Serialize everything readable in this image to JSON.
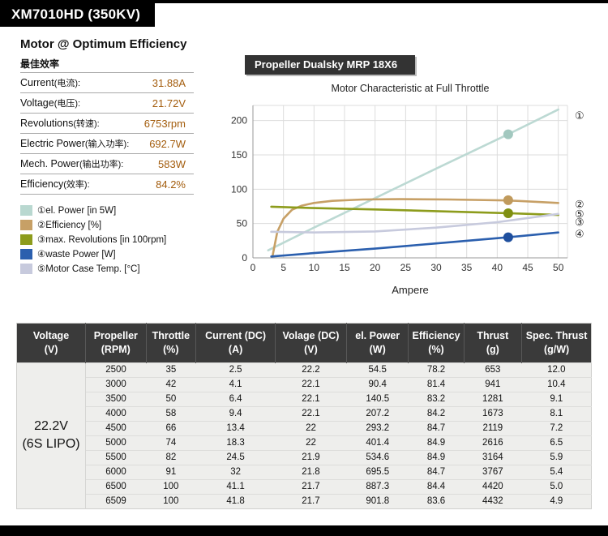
{
  "header": {
    "title": "XM7010HD (350KV)"
  },
  "optimum": {
    "title": "Motor @ Optimum Efficiency",
    "subtitle": "最佳效率",
    "rows": [
      {
        "label": "Current",
        "label_cn": "(电流):",
        "value": "31.88A"
      },
      {
        "label": "Voltage",
        "label_cn": "(电压):",
        "value": "21.72V"
      },
      {
        "label": "Revolutions",
        "label_cn": "(转速):",
        "value": "6753rpm"
      },
      {
        "label": "Electric Power",
        "label_cn": "(输入功率):",
        "value": "692.7W"
      },
      {
        "label": "Mech. Power",
        "label_cn": "(输出功率):",
        "value": "583W"
      },
      {
        "label": "Efficiency",
        "label_cn": "(效率):",
        "value": "84.2%"
      }
    ]
  },
  "legend": {
    "items": [
      {
        "num": "①",
        "label": "el. Power [in 5W]",
        "color": "#b9d8d0"
      },
      {
        "num": "②",
        "label": "Efficiency [%]",
        "color": "#c7a066"
      },
      {
        "num": "③",
        "label": "max. Revolutions [in 100rpm]",
        "color": "#8d9c1c"
      },
      {
        "num": "④",
        "label": "waste Power [W]",
        "color": "#2b5fae"
      },
      {
        "num": "⑤",
        "label": "Motor Case Temp. [°C]",
        "color": "#c7cadd"
      }
    ]
  },
  "propeller_label": "Propeller Dualsky MRP 18X6",
  "chart_data": {
    "type": "line",
    "title": "Motor Characteristic at Full Throttle",
    "xlabel": "Ampere",
    "ylabel": "",
    "xlim": [
      0,
      51.5
    ],
    "ylim": [
      0,
      222
    ],
    "xticks": [
      0,
      5,
      10,
      15,
      20,
      25,
      30,
      35,
      40,
      45,
      50
    ],
    "yticks": [
      0,
      50,
      100,
      150,
      200
    ],
    "grid": true,
    "legend_position": "left-panel",
    "series": [
      {
        "name": "el. Power [in 5W]",
        "color": "#bcd9d3",
        "points": [
          [
            2.5,
            11
          ],
          [
            10,
            44
          ],
          [
            20,
            87
          ],
          [
            30,
            130
          ],
          [
            41.8,
            180
          ],
          [
            50,
            216
          ]
        ]
      },
      {
        "name": "Efficiency [%]",
        "color": "#c7a066",
        "points": [
          [
            3.2,
            2
          ],
          [
            4,
            38
          ],
          [
            5,
            57
          ],
          [
            6.4,
            70
          ],
          [
            8,
            76
          ],
          [
            10,
            80
          ],
          [
            13,
            83
          ],
          [
            18,
            85
          ],
          [
            24,
            85.5
          ],
          [
            32,
            85
          ],
          [
            41.8,
            83.6
          ],
          [
            50,
            80
          ]
        ]
      },
      {
        "name": "max. Revolutions [in 100rpm]",
        "color": "#8d9c1c",
        "points": [
          [
            3,
            74.5
          ],
          [
            10,
            72.5
          ],
          [
            20,
            70.5
          ],
          [
            30,
            68
          ],
          [
            41.8,
            65.1
          ],
          [
            50,
            62.5
          ]
        ]
      },
      {
        "name": "waste Power [W]",
        "color": "#2b5fae",
        "points": [
          [
            3,
            2
          ],
          [
            10,
            7
          ],
          [
            20,
            13.5
          ],
          [
            30,
            21
          ],
          [
            41.8,
            30
          ],
          [
            50,
            37
          ]
        ]
      },
      {
        "name": "Motor Case Temp. [°C]",
        "color": "#c7cadd",
        "points": [
          [
            3,
            38
          ],
          [
            10,
            37
          ],
          [
            20,
            38.5
          ],
          [
            30,
            44
          ],
          [
            40,
            52
          ],
          [
            50,
            64
          ]
        ]
      }
    ],
    "markers": [
      {
        "x": 41.8,
        "y": 180,
        "color": "#a2c8bf"
      },
      {
        "x": 41.8,
        "y": 84,
        "color": "#c09a5c"
      },
      {
        "x": 41.8,
        "y": 65,
        "color": "#7f8f12"
      },
      {
        "x": 41.8,
        "y": 30,
        "color": "#1f4f9e"
      }
    ],
    "right_labels": [
      {
        "num": "①",
        "y": 207
      },
      {
        "num": "②",
        "y": 78
      },
      {
        "num": "⑤",
        "y": 64
      },
      {
        "num": "③",
        "y": 52
      },
      {
        "num": "④",
        "y": 35
      }
    ]
  },
  "table": {
    "headers": [
      {
        "line1": "Voltage",
        "line2": "(V)"
      },
      {
        "line1": "Propeller",
        "line2": "(RPM)"
      },
      {
        "line1": "Throttle",
        "line2": "(%)"
      },
      {
        "line1": "Current (DC)",
        "line2": "(A)"
      },
      {
        "line1": "Volage (DC)",
        "line2": "(V)"
      },
      {
        "line1": "el. Power",
        "line2": "(W)"
      },
      {
        "line1": "Efficiency",
        "line2": "(%)"
      },
      {
        "line1": "Thrust",
        "line2": "(g)"
      },
      {
        "line1": "Spec. Thrust",
        "line2": "(g/W)"
      }
    ],
    "voltage_cell": {
      "line1": "22.2V",
      "line2": "(6S LIPO)"
    },
    "rows": [
      [
        "2500",
        "35",
        "2.5",
        "22.2",
        "54.5",
        "78.2",
        "653",
        "12.0"
      ],
      [
        "3000",
        "42",
        "4.1",
        "22.1",
        "90.4",
        "81.4",
        "941",
        "10.4"
      ],
      [
        "3500",
        "50",
        "6.4",
        "22.1",
        "140.5",
        "83.2",
        "1281",
        "9.1"
      ],
      [
        "4000",
        "58",
        "9.4",
        "22.1",
        "207.2",
        "84.2",
        "1673",
        "8.1"
      ],
      [
        "4500",
        "66",
        "13.4",
        "22",
        "293.2",
        "84.7",
        "2119",
        "7.2"
      ],
      [
        "5000",
        "74",
        "18.3",
        "22",
        "401.4",
        "84.9",
        "2616",
        "6.5"
      ],
      [
        "5500",
        "82",
        "24.5",
        "21.9",
        "534.6",
        "84.9",
        "3164",
        "5.9"
      ],
      [
        "6000",
        "91",
        "32",
        "21.8",
        "695.5",
        "84.7",
        "3767",
        "5.4"
      ],
      [
        "6500",
        "100",
        "41.1",
        "21.7",
        "887.3",
        "84.4",
        "4420",
        "5.0"
      ],
      [
        "6509",
        "100",
        "41.8",
        "21.7",
        "901.8",
        "83.6",
        "4432",
        "4.9"
      ]
    ]
  }
}
